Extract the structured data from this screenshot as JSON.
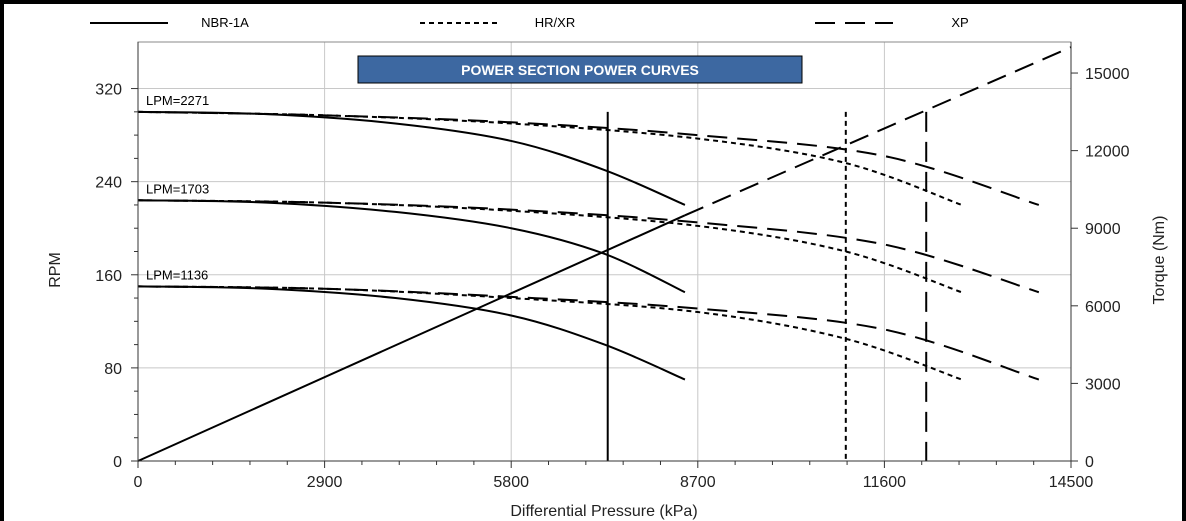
{
  "chart_data": {
    "type": "line",
    "title": "POWER SECTION POWER CURVES",
    "xlabel": "Differential Pressure (kPa)",
    "ylabel": "RPM",
    "y2label": "Torque (Nm)",
    "xlim": [
      0,
      14500
    ],
    "ylim": [
      0,
      360
    ],
    "y2lim": [
      0,
      16200
    ],
    "xticks": [
      0,
      2900,
      5800,
      8700,
      11600,
      14500
    ],
    "yticks": [
      0,
      80,
      160,
      240,
      320
    ],
    "y2ticks": [
      0,
      3000,
      6000,
      9000,
      12000,
      15000
    ],
    "grid": true,
    "legend": {
      "placement": "top",
      "entries": [
        {
          "label": "NBR-1A",
          "style": "solid"
        },
        {
          "label": "HR/XR",
          "style": "short-dash"
        },
        {
          "label": "XP",
          "style": "long-dash"
        }
      ]
    },
    "flow_labels": [
      {
        "text": "LPM=2271",
        "rpm": 300
      },
      {
        "text": "LPM=1703",
        "rpm": 224
      },
      {
        "text": "LPM=1136",
        "rpm": 150
      }
    ],
    "series": [
      {
        "legend": "NBR-1A",
        "flow": "LPM=2271",
        "style": "solid",
        "axis": "rpm",
        "x": [
          0,
          2000,
          4000,
          5800,
          7250,
          8500
        ],
        "y": [
          300,
          298,
          290,
          275,
          250,
          220
        ]
      },
      {
        "legend": "NBR-1A",
        "flow": "LPM=1703",
        "style": "solid",
        "axis": "rpm",
        "x": [
          0,
          2000,
          4000,
          5800,
          7250,
          8500
        ],
        "y": [
          224,
          222,
          214,
          200,
          178,
          145
        ]
      },
      {
        "legend": "NBR-1A",
        "flow": "LPM=1136",
        "style": "solid",
        "axis": "rpm",
        "x": [
          0,
          2000,
          4000,
          5800,
          7250,
          8500
        ],
        "y": [
          150,
          148,
          140,
          125,
          100,
          70
        ]
      },
      {
        "legend": "HR/XR",
        "flow": "LPM=2271",
        "style": "short-dash",
        "axis": "rpm",
        "x": [
          0,
          2900,
          5800,
          8700,
          11000,
          12800
        ],
        "y": [
          300,
          297,
          290,
          277,
          256,
          220
        ]
      },
      {
        "legend": "HR/XR",
        "flow": "LPM=1703",
        "style": "short-dash",
        "axis": "rpm",
        "x": [
          0,
          2900,
          5800,
          8700,
          11000,
          12800
        ],
        "y": [
          224,
          222,
          215,
          202,
          180,
          145
        ]
      },
      {
        "legend": "HR/XR",
        "flow": "LPM=1136",
        "style": "short-dash",
        "axis": "rpm",
        "x": [
          0,
          2900,
          5800,
          8700,
          11000,
          12800
        ],
        "y": [
          150,
          148,
          140,
          128,
          105,
          70
        ]
      },
      {
        "legend": "XP",
        "flow": "LPM=2271",
        "style": "long-dash",
        "axis": "rpm",
        "x": [
          0,
          2900,
          5800,
          8700,
          11600,
          14000
        ],
        "y": [
          300,
          297,
          291,
          280,
          262,
          220
        ]
      },
      {
        "legend": "XP",
        "flow": "LPM=1703",
        "style": "long-dash",
        "axis": "rpm",
        "x": [
          0,
          2900,
          5800,
          8700,
          11600,
          14000
        ],
        "y": [
          224,
          222,
          216,
          205,
          186,
          145
        ]
      },
      {
        "legend": "XP",
        "flow": "LPM=1136",
        "style": "long-dash",
        "axis": "rpm",
        "x": [
          0,
          2900,
          5800,
          8700,
          11600,
          14000
        ],
        "y": [
          150,
          148,
          141,
          131,
          113,
          70
        ]
      },
      {
        "legend": "NBR-1A",
        "flow": "",
        "style": "solid",
        "axis": "torque",
        "x": [
          0,
          8500
        ],
        "y": [
          0,
          9500
        ]
      },
      {
        "legend": "XP",
        "flow": "",
        "style": "long-dash",
        "axis": "torque",
        "x": [
          8500,
          14500
        ],
        "y": [
          9500,
          16000
        ]
      }
    ],
    "max_pressure_markers": [
      {
        "legend": "NBR-1A",
        "style": "solid",
        "x": 7300,
        "rpm_top": 300
      },
      {
        "legend": "HR/XR",
        "style": "short-dash",
        "x": 11000,
        "rpm_top": 300
      },
      {
        "legend": "XP",
        "style": "long-dash",
        "x": 12250,
        "rpm_top": 300
      }
    ],
    "colors": {
      "title_bg": "#3d68a1",
      "title_text": "#ffffff",
      "line": "#000000",
      "grid": "#c8c8c8"
    }
  }
}
